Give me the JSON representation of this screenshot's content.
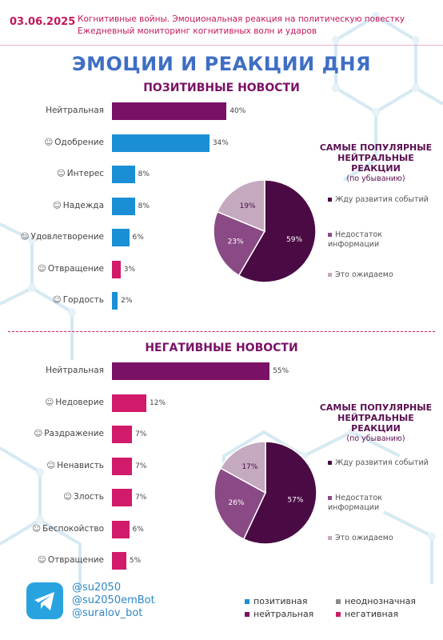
{
  "header": {
    "date": "03.06.2025",
    "subtitle_1": "Когнитивные войны. Эмоциональная реакция на политическую повестку",
    "subtitle_2": "Ежедневный мониторинг когнитивных волн и ударов"
  },
  "title": "ЭМОЦИИ И РЕАКЦИИ ДНЯ",
  "colors": {
    "positive": "#1a8fd6",
    "neutral": "#7a1166",
    "negative": "#d11a6a",
    "ambiguous": "#8a8a8a",
    "pie_dark": "#4a0b45",
    "pie_mid": "#8a4a85",
    "pie_light": "#c4a9bf"
  },
  "chart_data": [
    {
      "type": "bar",
      "title": "ПОЗИТИВНЫЕ НОВОСТИ",
      "unit": "%",
      "xlim": [
        0,
        60
      ],
      "categories": [
        "Нейтральная",
        "Одобрение",
        "Интерес",
        "Надежда",
        "Удовлетворение",
        "Отвращение",
        "Гордость"
      ],
      "values": [
        40,
        34,
        8,
        8,
        6,
        3,
        2
      ],
      "value_labels": [
        "40%",
        "34%",
        "8%",
        "8%",
        "6%",
        "3%",
        "2%"
      ],
      "bar_kinds": [
        "neutral",
        "positive",
        "positive",
        "positive",
        "positive",
        "negative",
        "positive"
      ],
      "icons": [
        "",
        "approval-emoji-icon",
        "interest-emoji-icon",
        "hope-emoji-icon",
        "satisfaction-emoji-icon",
        "disgust-emoji-icon",
        "pride-emoji-icon"
      ]
    },
    {
      "type": "pie",
      "title": "САМЫЕ ПОПУЛЯРНЫЕ НЕЙТРАЛЬНЫЕ РЕАКЦИИ",
      "subtitle": "(по убыванию)",
      "labels": [
        "Жду развития событий",
        "Недостаток информации",
        "Это ожидаемо"
      ],
      "values": [
        59,
        23,
        19
      ],
      "value_labels": [
        "59%",
        "23%",
        "19%"
      ],
      "legend": "right"
    },
    {
      "type": "bar",
      "title": "НЕГАТИВНЫЕ НОВОСТИ",
      "unit": "%",
      "xlim": [
        0,
        60
      ],
      "categories": [
        "Нейтральная",
        "Недоверие",
        "Раздражение",
        "Ненависть",
        "Злость",
        "Беспокойство",
        "Отвращение"
      ],
      "values": [
        55,
        12,
        7,
        7,
        7,
        6,
        5
      ],
      "value_labels": [
        "55%",
        "12%",
        "7%",
        "7%",
        "7%",
        "6%",
        "5%"
      ],
      "bar_kinds": [
        "neutral",
        "negative",
        "negative",
        "negative",
        "negative",
        "negative",
        "negative"
      ],
      "icons": [
        "",
        "distrust-emoji-icon",
        "irritation-emoji-icon",
        "hatred-emoji-icon",
        "anger-emoji-icon",
        "anxiety-emoji-icon",
        "disgust-emoji-icon"
      ]
    },
    {
      "type": "pie",
      "title": "САМЫЕ ПОПУЛЯРНЫЕ НЕЙТРАЛЬНЫЕ РЕАКЦИИ",
      "subtitle": "(по убыванию)",
      "labels": [
        "Жду развития событий",
        "Недостаток информации",
        "Это ожидаемо"
      ],
      "values": [
        57,
        26,
        17
      ],
      "value_labels": [
        "57%",
        "26%",
        "17%"
      ],
      "legend": "right"
    }
  ],
  "footer": {
    "handles": [
      "@su2050",
      "@su2050emBot",
      "@suralov_bot"
    ],
    "legend": [
      {
        "label": "позитивная",
        "kind": "positive"
      },
      {
        "label": "неоднозначная",
        "kind": "ambiguous"
      },
      {
        "label": "нейтральная",
        "kind": "neutral"
      },
      {
        "label": "негативная",
        "kind": "negative"
      }
    ]
  }
}
